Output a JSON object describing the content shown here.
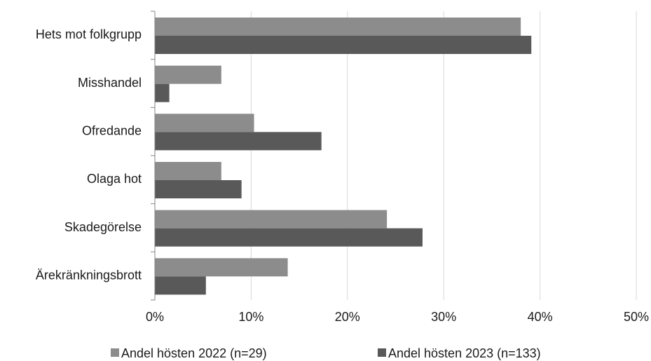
{
  "chart_data": {
    "type": "bar",
    "orientation": "horizontal",
    "categories": [
      "Hets mot folkgrupp",
      "Misshandel",
      "Ofredande",
      "Olaga hot",
      "Skadegörelse",
      "Ärekränkningsbrott"
    ],
    "series": [
      {
        "name": "Andel hösten 2022 (n=29)",
        "color": "#8c8c8c",
        "values": [
          38.0,
          6.9,
          10.3,
          6.9,
          24.1,
          13.8
        ]
      },
      {
        "name": "Andel hösten 2023 (n=133)",
        "color": "#595959",
        "values": [
          39.1,
          1.5,
          17.3,
          9.0,
          27.8,
          5.3
        ]
      }
    ],
    "xlim": [
      0,
      50
    ],
    "xticks": [
      "0%",
      "10%",
      "20%",
      "30%",
      "40%",
      "50%"
    ],
    "grid": true,
    "legend_position": "bottom"
  }
}
